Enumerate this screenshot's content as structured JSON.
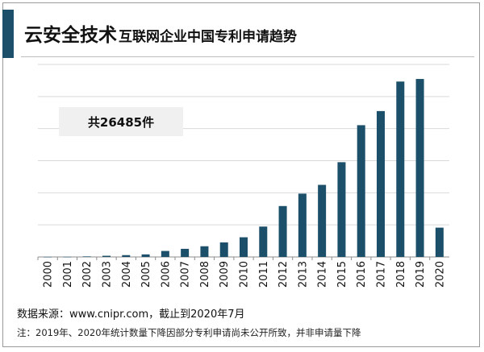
{
  "header": {
    "title_main": "云安全技术",
    "title_sub": "互联网企业中国专利申请趋势"
  },
  "total_label": "共26485件",
  "footer": {
    "source": "数据来源：www.cnipr.com，截止到2020年7月",
    "note": "注：2019年、2020年统计数量下降因部分专利申请尚未公开所致，并非申请量下降"
  },
  "colors": {
    "bar": "#1b4f6a",
    "accent": "#1b4f6a",
    "grid": "#d9d9d9"
  },
  "chart_data": {
    "type": "bar",
    "categories": [
      "2000",
      "2001",
      "2002",
      "2003",
      "2004",
      "2005",
      "2006",
      "2007",
      "2008",
      "2009",
      "2010",
      "2011",
      "2012",
      "2013",
      "2014",
      "2015",
      "2016",
      "2017",
      "2018",
      "2019",
      "2020"
    ],
    "values": [
      3,
      6,
      25,
      55,
      85,
      120,
      280,
      380,
      500,
      680,
      920,
      1420,
      2380,
      2960,
      3370,
      4430,
      6160,
      6820,
      8200,
      8320,
      1370
    ],
    "ylim": [
      0,
      9000
    ],
    "yticks": [
      0,
      1500,
      3000,
      4500,
      6000,
      7500,
      9000
    ],
    "grid": true,
    "show_y_tick_labels": false,
    "title": "",
    "xlabel": "",
    "ylabel": ""
  }
}
